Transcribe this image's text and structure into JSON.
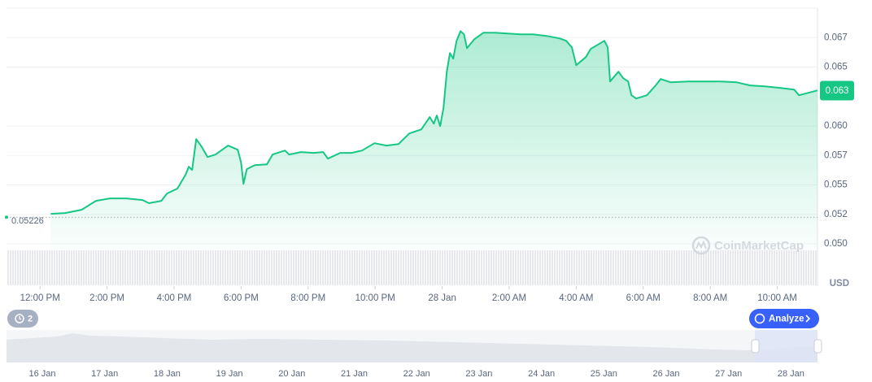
{
  "chart_data": {
    "type": "line",
    "color": "#16c784",
    "x": [
      0.32,
      0.75,
      1.24,
      1.67,
      2.09,
      2.57,
      3.06,
      3.25,
      3.62,
      3.79,
      4.1,
      4.34,
      4.44,
      4.54,
      4.66,
      4.83,
      5.0,
      5.24,
      5.61,
      5.9,
      6.0,
      6.07,
      6.17,
      6.41,
      6.77,
      6.94,
      7.31,
      7.43,
      7.79,
      8.16,
      8.45,
      8.59,
      8.96,
      9.3,
      9.61,
      9.98,
      10.34,
      10.7,
      11.02,
      11.38,
      11.63,
      11.75,
      11.84,
      11.94,
      12.04,
      12.14,
      12.23,
      12.33,
      12.43,
      12.55,
      12.65,
      12.74,
      12.96,
      13.23,
      13.57,
      13.96,
      14.34,
      14.71,
      15.12,
      15.51,
      15.7,
      15.87,
      16.0,
      16.29,
      16.43,
      16.72,
      16.84,
      16.94,
      17.01,
      17.26,
      17.4,
      17.55,
      17.65,
      17.79,
      18.11,
      18.37,
      18.52,
      18.81,
      19.34,
      19.81,
      20.29,
      20.78,
      21.19,
      21.63,
      22.11,
      22.5,
      22.65,
      23.01,
      23.2
    ],
    "values": [
      0.05255,
      0.05262,
      0.05289,
      0.05365,
      0.05386,
      0.05386,
      0.05372,
      0.05345,
      0.05365,
      0.05427,
      0.05469,
      0.05586,
      0.05655,
      0.05627,
      0.05889,
      0.0582,
      0.05737,
      0.05758,
      0.05834,
      0.05799,
      0.05689,
      0.0551,
      0.05634,
      0.05668,
      0.05675,
      0.05758,
      0.05792,
      0.05758,
      0.05779,
      0.05772,
      0.05779,
      0.05723,
      0.05772,
      0.05772,
      0.05792,
      0.05854,
      0.05834,
      0.05847,
      0.05937,
      0.05971,
      0.06075,
      0.0602,
      0.06089,
      0.05999,
      0.06151,
      0.06461,
      0.06619,
      0.06571,
      0.06723,
      0.06805,
      0.06778,
      0.0666,
      0.06736,
      0.06791,
      0.06791,
      0.06785,
      0.06778,
      0.06778,
      0.06764,
      0.06743,
      0.06723,
      0.06667,
      0.06516,
      0.06585,
      0.06654,
      0.06702,
      0.06723,
      0.06667,
      0.06378,
      0.06461,
      0.06406,
      0.06378,
      0.06261,
      0.06233,
      0.06261,
      0.06344,
      0.06399,
      0.06371,
      0.06378,
      0.06378,
      0.06378,
      0.06371,
      0.06344,
      0.06337,
      0.06323,
      0.06309,
      0.06261,
      0.06288,
      0.06302
    ],
    "xlim": [
      -1,
      23.2
    ],
    "xticks": [
      {
        "value": 0,
        "label": "12:00 PM"
      },
      {
        "value": 2,
        "label": "2:00 PM"
      },
      {
        "value": 4,
        "label": "4:00 PM"
      },
      {
        "value": 6,
        "label": "6:00 PM"
      },
      {
        "value": 8,
        "label": "8:00 PM"
      },
      {
        "value": 10,
        "label": "10:00 PM"
      },
      {
        "value": 12,
        "label": "28 Jan"
      },
      {
        "value": 14,
        "label": "2:00 AM"
      },
      {
        "value": 16,
        "label": "4:00 AM"
      },
      {
        "value": 18,
        "label": "6:00 AM"
      },
      {
        "value": 20,
        "label": "8:00 AM"
      },
      {
        "value": 22,
        "label": "10:00 AM"
      }
    ],
    "ylim": [
      0.0495,
      0.07
    ],
    "yticks": [
      {
        "value": 0.05,
        "label": "0.050"
      },
      {
        "value": 0.0525,
        "label": "0.052"
      },
      0.055,
      {
        "value": 0.0575,
        "label": "0.057"
      },
      {
        "value": 0.06,
        "label": "0.060"
      },
      0.065,
      {
        "value": 0.0675,
        "label": "0.067"
      }
    ],
    "grid": true,
    "baseline": 0.05226,
    "current_price": 0.063,
    "currency": "USD",
    "watermark": "CoinMarketCap",
    "history_count": "2",
    "analyze_button": "Analyze",
    "navigator_dates": [
      "16 Jan",
      "17 Jan",
      "18 Jan",
      "19 Jan",
      "20 Jan",
      "21 Jan",
      "22 Jan",
      "23 Jan",
      "24 Jan",
      "25 Jan",
      "26 Jan",
      "27 Jan",
      "28 Jan"
    ]
  }
}
